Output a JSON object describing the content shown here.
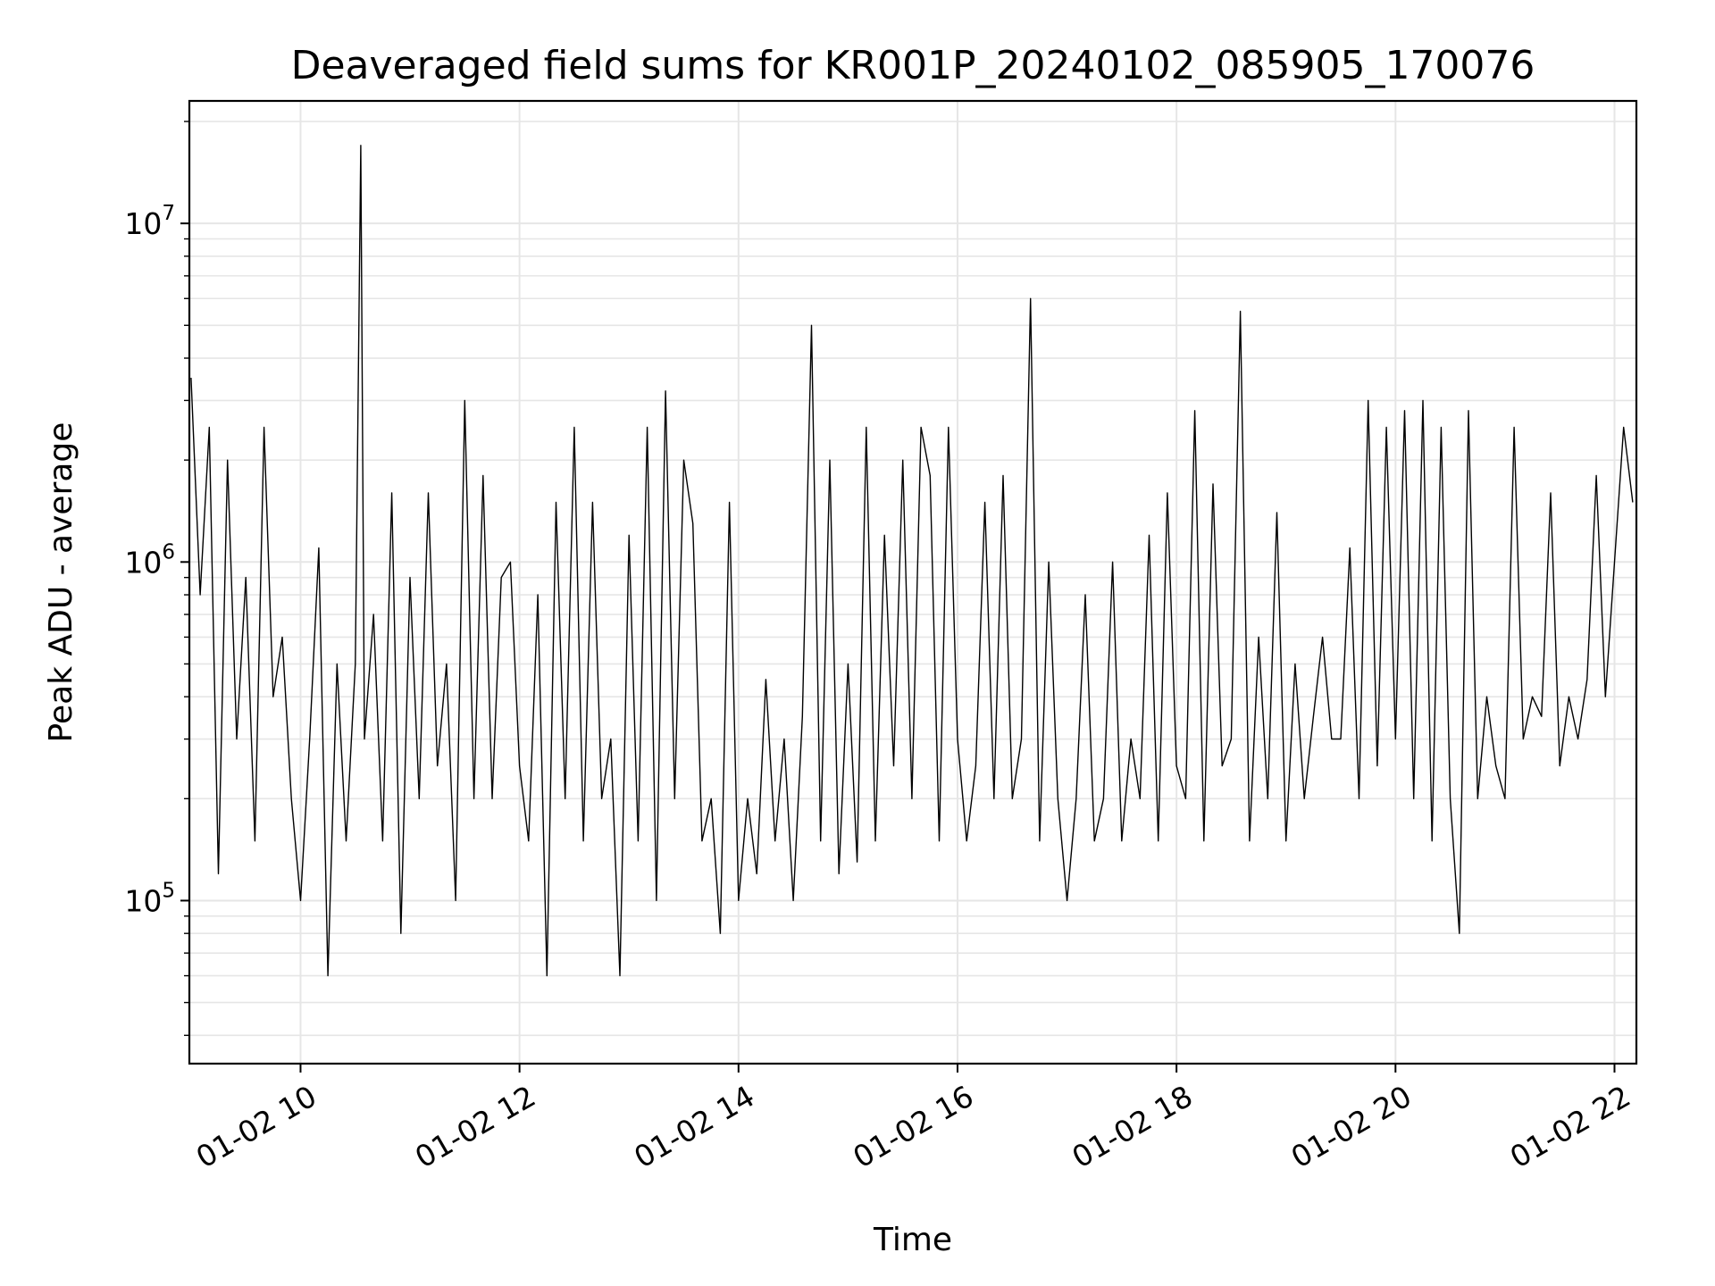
{
  "chart_data": {
    "type": "line",
    "title": "Deaveraged field sums for KR001P_20240102_085905_170076",
    "xlabel": "Time",
    "ylabel": "Peak ADU - average",
    "x_range": [
      "2024-01-02T08:59:05",
      "2024-01-02T22:12:00"
    ],
    "ylim": [
      33000,
      23000000
    ],
    "y_scale": "log",
    "grid": true,
    "legend": "none",
    "line_color": "#000000",
    "x_ticks": [
      {
        "value": "2024-01-02T10:00:00",
        "label": "01-02 10"
      },
      {
        "value": "2024-01-02T12:00:00",
        "label": "01-02 12"
      },
      {
        "value": "2024-01-02T14:00:00",
        "label": "01-02 14"
      },
      {
        "value": "2024-01-02T16:00:00",
        "label": "01-02 16"
      },
      {
        "value": "2024-01-02T18:00:00",
        "label": "01-02 18"
      },
      {
        "value": "2024-01-02T20:00:00",
        "label": "01-02 20"
      },
      {
        "value": "2024-01-02T22:00:00",
        "label": "01-02 22"
      }
    ],
    "y_ticks": [
      {
        "value": 100000,
        "base": "10",
        "exp": "5"
      },
      {
        "value": 1000000,
        "base": "10",
        "exp": "6"
      },
      {
        "value": 10000000,
        "base": "10",
        "exp": "7"
      }
    ],
    "series": [
      {
        "x": [
          "2024-01-02T09:00:00",
          "2024-01-02T09:05:00",
          "2024-01-02T09:10:00",
          "2024-01-02T09:15:00",
          "2024-01-02T09:20:00",
          "2024-01-02T09:25:00",
          "2024-01-02T09:30:00",
          "2024-01-02T09:35:00",
          "2024-01-02T09:40:00",
          "2024-01-02T09:45:00",
          "2024-01-02T09:50:00",
          "2024-01-02T09:55:00",
          "2024-01-02T10:00:00",
          "2024-01-02T10:05:00",
          "2024-01-02T10:10:00",
          "2024-01-02T10:15:00",
          "2024-01-02T10:20:00",
          "2024-01-02T10:25:00",
          "2024-01-02T10:30:00",
          "2024-01-02T10:33:00",
          "2024-01-02T10:35:00",
          "2024-01-02T10:40:00",
          "2024-01-02T10:45:00",
          "2024-01-02T10:50:00",
          "2024-01-02T10:55:00",
          "2024-01-02T11:00:00",
          "2024-01-02T11:05:00",
          "2024-01-02T11:10:00",
          "2024-01-02T11:15:00",
          "2024-01-02T11:20:00",
          "2024-01-02T11:25:00",
          "2024-01-02T11:30:00",
          "2024-01-02T11:35:00",
          "2024-01-02T11:40:00",
          "2024-01-02T11:45:00",
          "2024-01-02T11:50:00",
          "2024-01-02T11:55:00",
          "2024-01-02T12:00:00",
          "2024-01-02T12:05:00",
          "2024-01-02T12:10:00",
          "2024-01-02T12:15:00",
          "2024-01-02T12:20:00",
          "2024-01-02T12:25:00",
          "2024-01-02T12:30:00",
          "2024-01-02T12:35:00",
          "2024-01-02T12:40:00",
          "2024-01-02T12:45:00",
          "2024-01-02T12:50:00",
          "2024-01-02T12:55:00",
          "2024-01-02T13:00:00",
          "2024-01-02T13:05:00",
          "2024-01-02T13:10:00",
          "2024-01-02T13:15:00",
          "2024-01-02T13:20:00",
          "2024-01-02T13:25:00",
          "2024-01-02T13:30:00",
          "2024-01-02T13:35:00",
          "2024-01-02T13:40:00",
          "2024-01-02T13:45:00",
          "2024-01-02T13:50:00",
          "2024-01-02T13:55:00",
          "2024-01-02T14:00:00",
          "2024-01-02T14:05:00",
          "2024-01-02T14:10:00",
          "2024-01-02T14:15:00",
          "2024-01-02T14:20:00",
          "2024-01-02T14:25:00",
          "2024-01-02T14:30:00",
          "2024-01-02T14:35:00",
          "2024-01-02T14:40:00",
          "2024-01-02T14:45:00",
          "2024-01-02T14:50:00",
          "2024-01-02T14:55:00",
          "2024-01-02T15:00:00",
          "2024-01-02T15:05:00",
          "2024-01-02T15:10:00",
          "2024-01-02T15:15:00",
          "2024-01-02T15:20:00",
          "2024-01-02T15:25:00",
          "2024-01-02T15:30:00",
          "2024-01-02T15:35:00",
          "2024-01-02T15:40:00",
          "2024-01-02T15:45:00",
          "2024-01-02T15:50:00",
          "2024-01-02T15:55:00",
          "2024-01-02T16:00:00",
          "2024-01-02T16:05:00",
          "2024-01-02T16:10:00",
          "2024-01-02T16:15:00",
          "2024-01-02T16:20:00",
          "2024-01-02T16:25:00",
          "2024-01-02T16:30:00",
          "2024-01-02T16:35:00",
          "2024-01-02T16:40:00",
          "2024-01-02T16:45:00",
          "2024-01-02T16:50:00",
          "2024-01-02T16:55:00",
          "2024-01-02T17:00:00",
          "2024-01-02T17:05:00",
          "2024-01-02T17:10:00",
          "2024-01-02T17:15:00",
          "2024-01-02T17:20:00",
          "2024-01-02T17:25:00",
          "2024-01-02T17:30:00",
          "2024-01-02T17:35:00",
          "2024-01-02T17:40:00",
          "2024-01-02T17:45:00",
          "2024-01-02T17:50:00",
          "2024-01-02T17:55:00",
          "2024-01-02T18:00:00",
          "2024-01-02T18:05:00",
          "2024-01-02T18:10:00",
          "2024-01-02T18:15:00",
          "2024-01-02T18:20:00",
          "2024-01-02T18:25:00",
          "2024-01-02T18:30:00",
          "2024-01-02T18:35:00",
          "2024-01-02T18:40:00",
          "2024-01-02T18:45:00",
          "2024-01-02T18:50:00",
          "2024-01-02T18:55:00",
          "2024-01-02T19:00:00",
          "2024-01-02T19:05:00",
          "2024-01-02T19:10:00",
          "2024-01-02T19:15:00",
          "2024-01-02T19:20:00",
          "2024-01-02T19:25:00",
          "2024-01-02T19:30:00",
          "2024-01-02T19:35:00",
          "2024-01-02T19:40:00",
          "2024-01-02T19:45:00",
          "2024-01-02T19:50:00",
          "2024-01-02T19:55:00",
          "2024-01-02T20:00:00",
          "2024-01-02T20:05:00",
          "2024-01-02T20:10:00",
          "2024-01-02T20:15:00",
          "2024-01-02T20:20:00",
          "2024-01-02T20:25:00",
          "2024-01-02T20:30:00",
          "2024-01-02T20:35:00",
          "2024-01-02T20:40:00",
          "2024-01-02T20:45:00",
          "2024-01-02T20:50:00",
          "2024-01-02T20:55:00",
          "2024-01-02T21:00:00",
          "2024-01-02T21:05:00",
          "2024-01-02T21:10:00",
          "2024-01-02T21:15:00",
          "2024-01-02T21:20:00",
          "2024-01-02T21:25:00",
          "2024-01-02T21:30:00",
          "2024-01-02T21:35:00",
          "2024-01-02T21:40:00",
          "2024-01-02T21:45:00",
          "2024-01-02T21:50:00",
          "2024-01-02T21:55:00",
          "2024-01-02T22:00:00",
          "2024-01-02T22:05:00",
          "2024-01-02T22:10:00"
        ],
        "y": [
          3500000,
          800000,
          2500000,
          120000,
          2000000,
          300000,
          900000,
          150000,
          2500000,
          400000,
          600000,
          200000,
          100000,
          300000,
          1100000,
          60000,
          500000,
          150000,
          500000,
          17000000,
          300000,
          700000,
          150000,
          1600000,
          80000,
          900000,
          200000,
          1600000,
          250000,
          500000,
          100000,
          3000000,
          200000,
          1800000,
          200000,
          900000,
          1000000,
          250000,
          150000,
          800000,
          60000,
          1500000,
          200000,
          2500000,
          150000,
          1500000,
          200000,
          300000,
          60000,
          1200000,
          150000,
          2500000,
          100000,
          3200000,
          200000,
          2000000,
          1300000,
          150000,
          200000,
          80000,
          1500000,
          100000,
          200000,
          120000,
          450000,
          150000,
          300000,
          100000,
          350000,
          5000000,
          150000,
          2000000,
          120000,
          500000,
          130000,
          2500000,
          150000,
          1200000,
          250000,
          2000000,
          200000,
          2500000,
          1800000,
          150000,
          2500000,
          300000,
          150000,
          250000,
          1500000,
          200000,
          1800000,
          200000,
          300000,
          6000000,
          150000,
          1000000,
          200000,
          100000,
          200000,
          800000,
          150000,
          200000,
          1000000,
          150000,
          300000,
          200000,
          1200000,
          150000,
          1600000,
          250000,
          200000,
          2800000,
          150000,
          1700000,
          250000,
          300000,
          5500000,
          150000,
          600000,
          200000,
          1400000,
          150000,
          500000,
          200000,
          350000,
          600000,
          300000,
          300000,
          1100000,
          200000,
          3000000,
          250000,
          2500000,
          300000,
          2800000,
          200000,
          3000000,
          150000,
          2500000,
          200000,
          80000,
          2800000,
          200000,
          400000,
          250000,
          200000,
          2500000,
          300000,
          400000,
          350000,
          1600000,
          250000,
          400000,
          300000,
          450000,
          1800000,
          400000,
          1000000,
          2500000,
          1500000
        ]
      }
    ]
  }
}
